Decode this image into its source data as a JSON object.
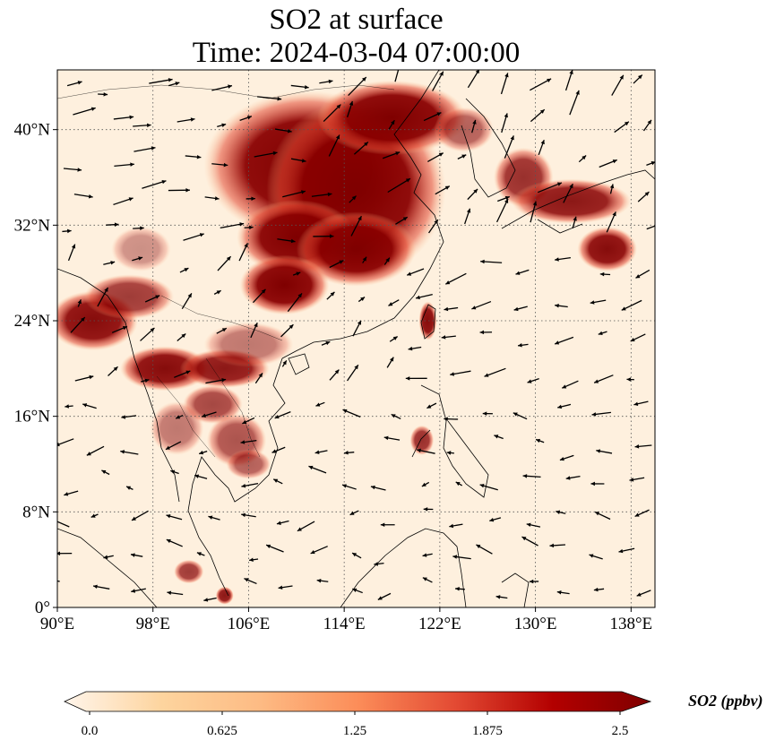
{
  "title": {
    "line1": "SO2 at surface",
    "line2": "Time: 2024-03-04 07:00:00"
  },
  "map": {
    "lon_range": [
      90,
      140
    ],
    "lat_range": [
      0,
      45
    ],
    "lon_ticks": [
      {
        "value": 90,
        "label": "90°E"
      },
      {
        "value": 98,
        "label": "98°E"
      },
      {
        "value": 106,
        "label": "106°E"
      },
      {
        "value": 114,
        "label": "114°E"
      },
      {
        "value": 122,
        "label": "122°E"
      },
      {
        "value": 130,
        "label": "130°E"
      },
      {
        "value": 138,
        "label": "138°E"
      }
    ],
    "lat_ticks": [
      {
        "value": 0,
        "label": "0°"
      },
      {
        "value": 8,
        "label": "8°N"
      },
      {
        "value": 16,
        "label": "16°N"
      },
      {
        "value": 24,
        "label": "24°N"
      },
      {
        "value": 32,
        "label": "32°N"
      },
      {
        "value": 40,
        "label": "40°N"
      }
    ],
    "gridlines": true,
    "plumes": [
      {
        "lon": 111,
        "lat": 37,
        "rlon": 7,
        "rlat": 5,
        "level": 1.0
      },
      {
        "lon": 115,
        "lat": 35,
        "rlon": 6,
        "rlat": 6,
        "level": 1.0
      },
      {
        "lon": 110,
        "lat": 31,
        "rlon": 4,
        "rlat": 2.5,
        "level": 1.0
      },
      {
        "lon": 115,
        "lat": 30,
        "rlon": 4,
        "rlat": 2.5,
        "level": 1.0
      },
      {
        "lon": 118,
        "lat": 41,
        "rlon": 5,
        "rlat": 2.5,
        "level": 1.0
      },
      {
        "lon": 109,
        "lat": 27,
        "rlon": 3,
        "rlat": 2,
        "level": 1.0
      },
      {
        "lon": 93,
        "lat": 24,
        "rlon": 3,
        "rlat": 2,
        "level": 0.95
      },
      {
        "lon": 96,
        "lat": 26,
        "rlon": 3,
        "rlat": 1.5,
        "level": 0.75
      },
      {
        "lon": 99,
        "lat": 20,
        "rlon": 3,
        "rlat": 1.5,
        "level": 0.95
      },
      {
        "lon": 104,
        "lat": 20,
        "rlon": 3,
        "rlat": 1.3,
        "level": 0.9
      },
      {
        "lon": 103,
        "lat": 17,
        "rlon": 2,
        "rlat": 1.3,
        "level": 0.7
      },
      {
        "lon": 105,
        "lat": 14,
        "rlon": 2,
        "rlat": 1.8,
        "level": 0.65
      },
      {
        "lon": 106,
        "lat": 12,
        "rlon": 1.5,
        "rlat": 1,
        "level": 0.6
      },
      {
        "lon": 100,
        "lat": 15,
        "rlon": 1.8,
        "rlat": 1.8,
        "level": 0.5
      },
      {
        "lon": 121,
        "lat": 24,
        "rlon": 0.6,
        "rlat": 1.3,
        "level": 0.95
      },
      {
        "lon": 120.5,
        "lat": 14,
        "rlon": 0.8,
        "rlat": 1,
        "level": 0.8
      },
      {
        "lon": 129,
        "lat": 36,
        "rlon": 2,
        "rlat": 2,
        "level": 0.8
      },
      {
        "lon": 133,
        "lat": 34,
        "rlon": 4,
        "rlat": 1.5,
        "level": 0.9
      },
      {
        "lon": 136,
        "lat": 30,
        "rlon": 2,
        "rlat": 1.5,
        "level": 0.95
      },
      {
        "lon": 101,
        "lat": 3,
        "rlon": 1,
        "rlat": 0.8,
        "level": 0.75
      },
      {
        "lon": 104,
        "lat": 1,
        "rlon": 0.6,
        "rlat": 0.6,
        "level": 0.9
      },
      {
        "lon": 97,
        "lat": 30,
        "rlon": 2,
        "rlat": 1.5,
        "level": 0.4
      },
      {
        "lon": 124,
        "lat": 40,
        "rlon": 2,
        "rlat": 1.5,
        "level": 0.6
      },
      {
        "lon": 106,
        "lat": 22,
        "rlon": 3,
        "rlat": 1.5,
        "level": 0.5
      }
    ]
  },
  "colorbar": {
    "title": "SO2 (ppbv)",
    "min": 0.0,
    "max": 2.5,
    "ticks": [
      {
        "value": 0.0,
        "label": "0.0"
      },
      {
        "value": 0.625,
        "label": "0.625"
      },
      {
        "value": 1.25,
        "label": "1.25"
      },
      {
        "value": 1.875,
        "label": "1.875"
      },
      {
        "value": 2.5,
        "label": "2.5"
      }
    ],
    "colormap": [
      "#fff5eb",
      "#fdd49e",
      "#fdbb84",
      "#fc8d59",
      "#e34a33",
      "#b30000",
      "#7f0000"
    ]
  }
}
